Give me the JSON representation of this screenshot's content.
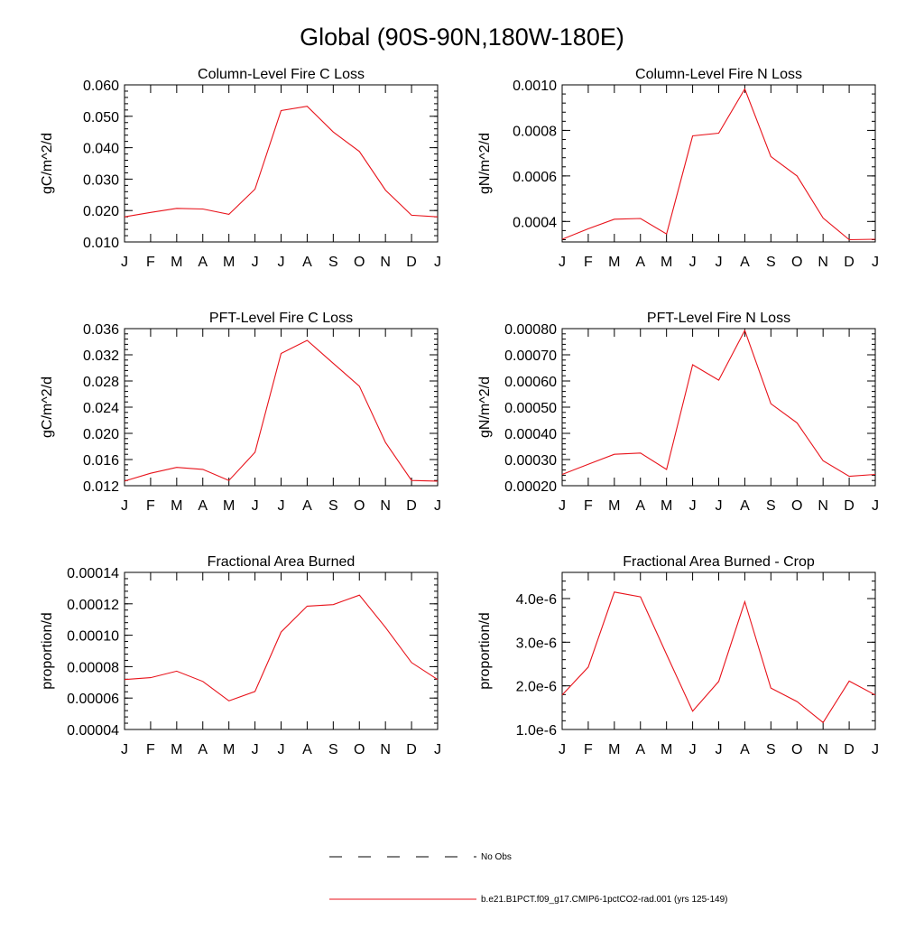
{
  "page": {
    "title": "Global (90S-90N,180W-180E)"
  },
  "colors": {
    "series": "#e8121a",
    "axis": "#000000",
    "obs": "#000000"
  },
  "legend": {
    "obs_label": "No Obs",
    "model_label": "b.e21.B1PCT.f09_g17.CMIP6-1pctCO2-rad.001 (yrs 125-149)"
  },
  "chart_data": [
    {
      "type": "line",
      "title": "Column-Level Fire C Loss",
      "ylabel": "gC/m^2/d",
      "categories": [
        "J",
        "F",
        "M",
        "A",
        "M",
        "J",
        "J",
        "A",
        "S",
        "O",
        "N",
        "D",
        "J"
      ],
      "ylim": [
        0.01,
        0.06
      ],
      "yticks": [
        "0.010",
        "0.020",
        "0.030",
        "0.040",
        "0.050",
        "0.060"
      ],
      "series": [
        {
          "values": [
            0.018,
            0.0194,
            0.0207,
            0.0205,
            0.0188,
            0.0268,
            0.0518,
            0.0532,
            0.045,
            0.0388,
            0.0265,
            0.0185,
            0.018
          ]
        }
      ]
    },
    {
      "type": "line",
      "title": "Column-Level Fire N Loss",
      "ylabel": "gN/m^2/d",
      "categories": [
        "J",
        "F",
        "M",
        "A",
        "M",
        "J",
        "J",
        "A",
        "S",
        "O",
        "N",
        "D",
        "J"
      ],
      "ylim": [
        0.00031,
        0.001
      ],
      "yticks": [
        "0.0004",
        "0.0006",
        "0.0008",
        "0.0010"
      ],
      "series": [
        {
          "values": [
            0.000322,
            0.000368,
            0.00041,
            0.000413,
            0.000345,
            0.000776,
            0.000788,
            0.000982,
            0.000685,
            0.0006,
            0.000415,
            0.00032,
            0.000322
          ]
        }
      ]
    },
    {
      "type": "line",
      "title": "PFT-Level Fire C Loss",
      "ylabel": "gC/m^2/d",
      "categories": [
        "J",
        "F",
        "M",
        "A",
        "M",
        "J",
        "J",
        "A",
        "S",
        "O",
        "N",
        "D",
        "J"
      ],
      "ylim": [
        0.012,
        0.036
      ],
      "yticks": [
        "0.012",
        "0.016",
        "0.020",
        "0.024",
        "0.028",
        "0.032",
        "0.036"
      ],
      "series": [
        {
          "values": [
            0.0127,
            0.0139,
            0.0148,
            0.0145,
            0.0128,
            0.0171,
            0.0322,
            0.0342,
            0.0307,
            0.0272,
            0.0186,
            0.0128,
            0.0127
          ]
        }
      ]
    },
    {
      "type": "line",
      "title": "PFT-Level Fire N Loss",
      "ylabel": "gN/m^2/d",
      "categories": [
        "J",
        "F",
        "M",
        "A",
        "M",
        "J",
        "J",
        "A",
        "S",
        "O",
        "N",
        "D",
        "J"
      ],
      "ylim": [
        0.0002,
        0.0008
      ],
      "yticks": [
        "0.00020",
        "0.00030",
        "0.00040",
        "0.00050",
        "0.00060",
        "0.00070",
        "0.00080"
      ],
      "series": [
        {
          "values": [
            0.000243,
            0.000282,
            0.00032,
            0.000325,
            0.000262,
            0.000662,
            0.000603,
            0.000793,
            0.000513,
            0.00044,
            0.000295,
            0.000236,
            0.000243
          ]
        }
      ]
    },
    {
      "type": "line",
      "title": "Fractional Area Burned",
      "ylabel": "proportion/d",
      "categories": [
        "J",
        "F",
        "M",
        "A",
        "M",
        "J",
        "J",
        "A",
        "S",
        "O",
        "N",
        "D",
        "J"
      ],
      "ylim": [
        4e-05,
        0.00014
      ],
      "yticks": [
        "0.00004",
        "0.00006",
        "0.00008",
        "0.00010",
        "0.00012",
        "0.00014"
      ],
      "series": [
        {
          "values": [
            7.18e-05,
            7.3e-05,
            7.71e-05,
            7.06e-05,
            5.82e-05,
            6.42e-05,
            0.000102,
            0.0001185,
            0.0001195,
            0.0001255,
            0.000105,
            8.26e-05,
            7.18e-05
          ]
        }
      ]
    },
    {
      "type": "line",
      "title": "Fractional Area Burned - Crop",
      "ylabel": "proportion/d",
      "categories": [
        "J",
        "F",
        "M",
        "A",
        "M",
        "J",
        "J",
        "A",
        "S",
        "O",
        "N",
        "D",
        "J"
      ],
      "ylim": [
        1e-06,
        4.6e-06
      ],
      "yticks": [
        "1.0e-6",
        "2.0e-6",
        "3.0e-6",
        "4.0e-6"
      ],
      "ytick_values": [
        1e-06,
        2e-06,
        3e-06,
        4e-06
      ],
      "series": [
        {
          "values": [
            1.79e-06,
            2.43e-06,
            4.15e-06,
            4.04e-06,
            2.72e-06,
            1.42e-06,
            2.1e-06,
            3.93e-06,
            1.95e-06,
            1.64e-06,
            1.16e-06,
            2.11e-06,
            1.79e-06
          ]
        }
      ]
    }
  ]
}
